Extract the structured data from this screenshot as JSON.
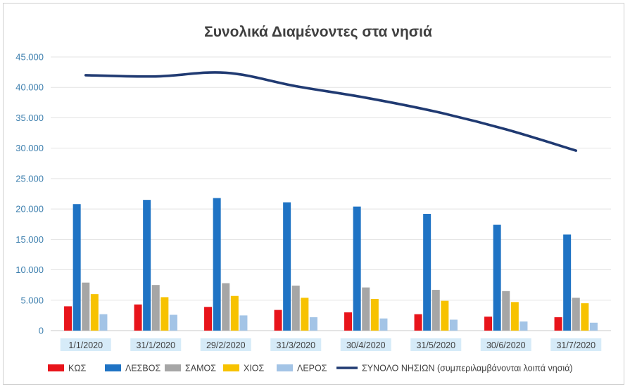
{
  "chart_data": {
    "type": "bar",
    "title": "Συνολικά Διαμένοντες στα νησιά",
    "categories": [
      "1/1/2020",
      "31/1/2020",
      "29/2/2020",
      "31/3/2020",
      "30/4/2020",
      "31/5/2020",
      "30/6/2020",
      "31/7/2020"
    ],
    "ylim": [
      0,
      45000
    ],
    "yticks": [
      "0",
      "5.000",
      "10.000",
      "15.000",
      "20.000",
      "25.000",
      "30.000",
      "35.000",
      "40.000",
      "45.000"
    ],
    "grid": true,
    "legend_position": "bottom",
    "series": [
      {
        "name": "ΚΩΣ",
        "kind": "bar",
        "color": "#e8141b",
        "values": [
          4000,
          4300,
          3900,
          3400,
          3000,
          2700,
          2300,
          2200
        ]
      },
      {
        "name": "ΛΕΣΒΟΣ",
        "kind": "bar",
        "color": "#1f73c4",
        "values": [
          20800,
          21500,
          21800,
          21100,
          20400,
          19200,
          17400,
          15800
        ]
      },
      {
        "name": "ΣΑΜΟΣ",
        "kind": "bar",
        "color": "#a6a6a6",
        "values": [
          7900,
          7500,
          7800,
          7400,
          7100,
          6700,
          6500,
          5400
        ]
      },
      {
        "name": "ΧΙΟΣ",
        "kind": "bar",
        "color": "#f7c200",
        "values": [
          6000,
          5500,
          5700,
          5400,
          5200,
          4900,
          4700,
          4500
        ]
      },
      {
        "name": "ΛΕΡΟΣ",
        "kind": "bar",
        "color": "#a3c4e6",
        "values": [
          2700,
          2600,
          2500,
          2200,
          2000,
          1800,
          1500,
          1300
        ]
      },
      {
        "name": "ΣΥΝΟΛΟ ΝΗΣΙΩΝ (συμπεριλαμβάνονται λοιπά νησιά)",
        "kind": "line",
        "color": "#203a72",
        "values": [
          42000,
          41800,
          42400,
          40200,
          38300,
          36000,
          33100,
          29600
        ]
      }
    ]
  }
}
